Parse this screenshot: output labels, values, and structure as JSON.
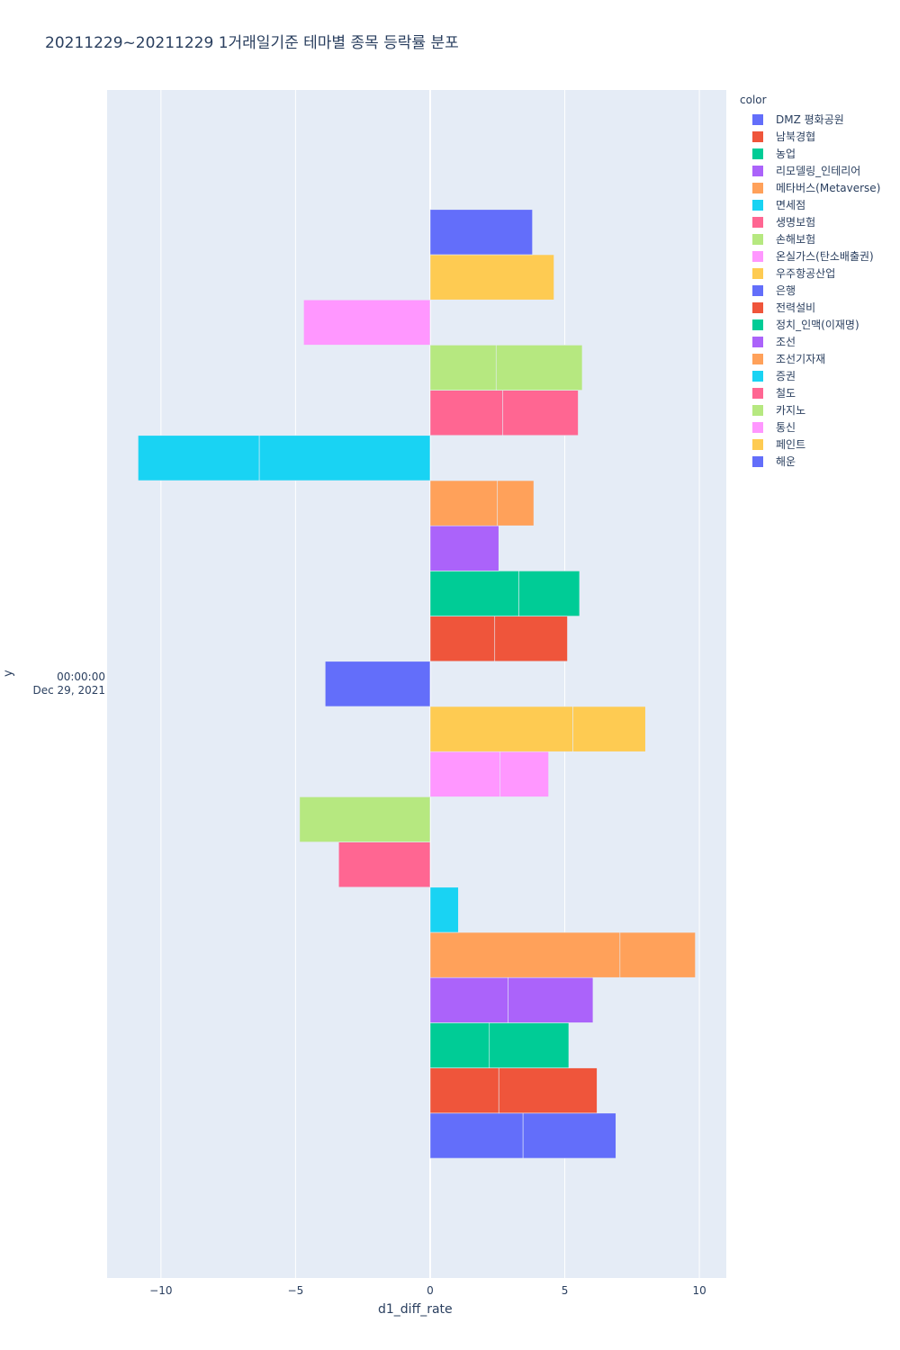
{
  "chart_data": {
    "type": "bar",
    "orientation": "horizontal",
    "barmode": "stack",
    "title": "20211229~20211229 1거래일기준 테마별 종목 등락률 분포",
    "xlabel": "d1_diff_rate",
    "ylabel": "y",
    "y_tick": {
      "line1": "00:00:00",
      "line2": "Dec 29, 2021"
    },
    "xlim": [
      -12,
      11
    ],
    "xticks": [
      -10,
      -5,
      0,
      5,
      10
    ],
    "xtick_labels": [
      "−10",
      "−5",
      "0",
      "5",
      "10"
    ],
    "legend_title": "color",
    "grid": true,
    "legend_position": "right",
    "series": [
      {
        "name": "DMZ 평화공원",
        "color": "#636efa",
        "segments": [
          3.45,
          3.45
        ]
      },
      {
        "name": "남북경협",
        "color": "#ef553b",
        "segments": [
          2.55,
          3.65
        ]
      },
      {
        "name": "농업",
        "color": "#00cc96",
        "segments": [
          2.2,
          2.95
        ]
      },
      {
        "name": "리모델링_인테리어",
        "color": "#ab63fa",
        "segments": [
          2.9,
          3.15
        ]
      },
      {
        "name": "메타버스(Metaverse)",
        "color": "#ffa15a",
        "segments": [
          7.05,
          2.8
        ]
      },
      {
        "name": "면세점",
        "color": "#19d3f3",
        "segments": [
          1.05
        ]
      },
      {
        "name": "생명보험",
        "color": "#ff6692",
        "segments": [
          -3.4
        ]
      },
      {
        "name": "손해보험",
        "color": "#b6e880",
        "segments": [
          -4.85
        ]
      },
      {
        "name": "온실가스(탄소배출권)",
        "color": "#ff97ff",
        "segments": [
          2.6,
          1.8
        ]
      },
      {
        "name": "우주항공산업",
        "color": "#fecb52",
        "segments": [
          5.3,
          2.7
        ]
      },
      {
        "name": "은행",
        "color": "#636efa",
        "segments": [
          -3.9
        ]
      },
      {
        "name": "전력설비",
        "color": "#ef553b",
        "segments": [
          2.4,
          2.7
        ]
      },
      {
        "name": "정치_인맥(이재명)",
        "color": "#00cc96",
        "segments": [
          3.3,
          2.25
        ]
      },
      {
        "name": "조선",
        "color": "#ab63fa",
        "segments": [
          2.55
        ]
      },
      {
        "name": "조선기자재",
        "color": "#ffa15a",
        "segments": [
          2.5,
          1.35
        ]
      },
      {
        "name": "증권",
        "color": "#19d3f3",
        "segments": [
          -6.35,
          -4.5
        ]
      },
      {
        "name": "철도",
        "color": "#ff6692",
        "segments": [
          2.7,
          2.8
        ]
      },
      {
        "name": "카지노",
        "color": "#b6e880",
        "segments": [
          2.45,
          3.2
        ]
      },
      {
        "name": "통신",
        "color": "#ff97ff",
        "segments": [
          -4.7
        ]
      },
      {
        "name": "페인트",
        "color": "#fecb52",
        "segments": [
          4.6
        ]
      },
      {
        "name": "해운",
        "color": "#636efa",
        "segments": [
          3.8
        ]
      }
    ]
  }
}
